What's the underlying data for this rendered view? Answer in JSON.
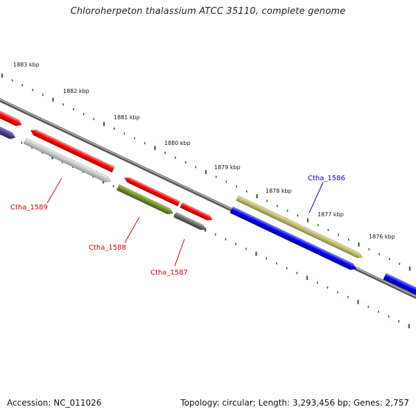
{
  "title": "Chloroherpeton thalassium ATCC 35110, complete genome",
  "footer": {
    "accession": "Accession: NC_011026",
    "summary": "Topology: circular; Length: 3,293,456 bp; Genes: 2,757"
  },
  "ticks": [
    {
      "label": "1883 kbp"
    },
    {
      "label": "1882 kbp"
    },
    {
      "label": "1881 kbp"
    },
    {
      "label": "1880 kbp"
    },
    {
      "label": "1879 kbp"
    },
    {
      "label": "1878 kbp"
    },
    {
      "label": "1877 kbp"
    },
    {
      "label": "1876 kbp"
    }
  ],
  "gene_labels": [
    {
      "name": "Ctha_1589",
      "color": "#cc0000"
    },
    {
      "name": "Ctha_1588",
      "color": "#cc0000"
    },
    {
      "name": "Ctha_1587",
      "color": "#cc0000"
    },
    {
      "name": "Ctha_1586",
      "color": "#0000bb"
    }
  ],
  "colors": {
    "backbone": "#808080",
    "tick": "#1a7a1a",
    "cds_red": "#ff0000",
    "cds_blue": "#0000ee",
    "cds_gray": "#c0c0c0",
    "cds_olive": "#6b8e23",
    "cds_darkgray": "#666666",
    "cds_khaki": "#bdb76b",
    "cds_slateblue": "#483d8b"
  }
}
